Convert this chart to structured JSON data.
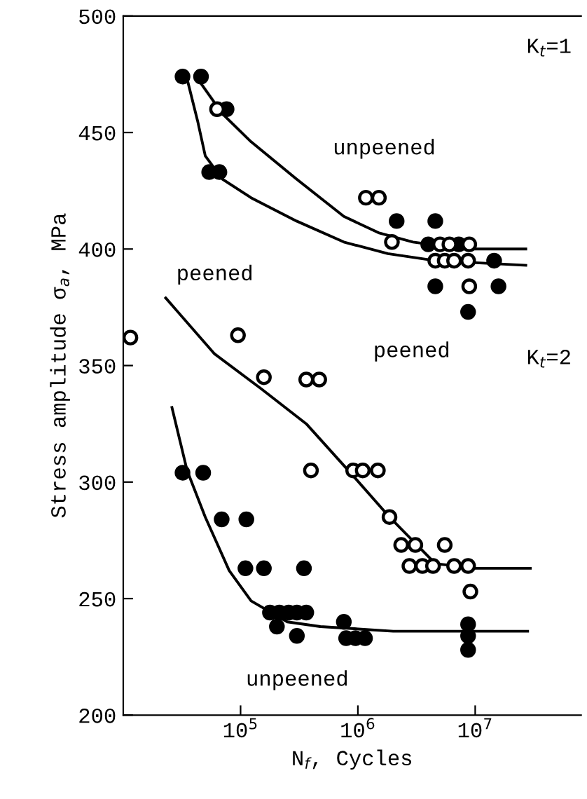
{
  "chart_data": {
    "type": "scatter",
    "xlabel": "N$_{f}$, Cycles",
    "ylabel": "Stress amplitude σ$_{a}$, MPa",
    "log": "x",
    "xlim": [
      10000,
      80000000
    ],
    "ylim": [
      200,
      500
    ],
    "xticks": [
      {
        "value": 100000,
        "label": "10$^{5}$"
      },
      {
        "value": 1000000,
        "label": "10$^{6}$"
      },
      {
        "value": 10000000,
        "label": "10$^{7}$"
      }
    ],
    "yticks": [
      200,
      250,
      300,
      350,
      400,
      450,
      500
    ],
    "grid": false,
    "legend": false,
    "series": [
      {
        "marker": "circle",
        "color": "#000000",
        "x": [
          32000,
          46000,
          76000,
          54000,
          66000,
          2140000,
          4570000,
          3980000,
          7240000,
          4570000,
          15800000,
          8700000,
          14500000
        ],
        "values": [
          474,
          474,
          460,
          433,
          433,
          412,
          412,
          402,
          402,
          384,
          384,
          373,
          395
        ]
      },
      {
        "marker": "circle",
        "color": "#ffffff",
        "x": [
          63000,
          1170000,
          1510000,
          1950000,
          5010000,
          6030000,
          8900000,
          4570000,
          5500000,
          6610000,
          8700000,
          8900000
        ],
        "values": [
          460,
          422,
          422,
          403,
          402,
          402,
          402,
          395,
          395,
          395,
          395,
          384
        ]
      },
      {
        "marker": "circle",
        "color": "#ffffff",
        "x": [
          11500,
          95000,
          158000,
          363000,
          468000,
          398000,
          912000,
          1100000,
          1480000,
          1860000,
          2340000,
          3090000,
          5500000,
          2750000,
          3550000,
          4370000,
          6610000,
          8700000,
          9100000
        ],
        "values": [
          362,
          363,
          345,
          344,
          344,
          305,
          305,
          305,
          305,
          285,
          273,
          273,
          273,
          264,
          264,
          264,
          264,
          264,
          253
        ]
      },
      {
        "marker": "circle",
        "color": "#000000",
        "x": [
          32000,
          48000,
          69000,
          112000,
          110000,
          158000,
          347000,
          178000,
          214000,
          257000,
          302000,
          363000,
          204000,
          302000,
          759000,
          794000,
          955000,
          1150000,
          8700000,
          8700000,
          8700000
        ],
        "values": [
          304,
          304,
          284,
          284,
          263,
          263,
          263,
          244,
          244,
          244,
          244,
          244,
          238,
          234,
          240,
          233,
          233,
          233,
          239,
          234,
          228
        ]
      },
      {
        "type": "line",
        "marker": "none",
        "color": "#000000",
        "x": [
          46000,
          70000,
          123000,
          300000,
          759000,
          1500000,
          2950000,
          8000000,
          27000000
        ],
        "values": [
          471,
          458,
          446,
          430,
          414,
          407,
          403,
          400,
          400
        ]
      },
      {
        "type": "line",
        "marker": "none",
        "color": "#000000",
        "x": [
          35000,
          43000,
          50000,
          70000,
          123000,
          300000,
          759000,
          1800000,
          4570000,
          27000000
        ],
        "values": [
          473,
          455,
          440,
          430,
          422,
          412,
          403,
          398,
          395,
          393
        ]
      },
      {
        "type": "line",
        "marker": "none",
        "color": "#000000",
        "x": [
          23000,
          60000,
          150000,
          363000,
          900000,
          1860000,
          4570000,
          10000000,
          29500000
        ],
        "values": [
          379,
          355,
          340,
          325,
          303,
          285,
          265,
          263,
          263
        ]
      },
      {
        "type": "line",
        "marker": "none",
        "color": "#000000",
        "x": [
          26000,
          35000,
          50000,
          80000,
          123000,
          250000,
          479000,
          2000000,
          28000000
        ],
        "values": [
          332,
          305,
          285,
          262,
          249,
          240,
          238,
          236,
          236
        ]
      }
    ],
    "annotations": [
      "K$_{t}$=1",
      "unpeened",
      "peened",
      "peened",
      "K$_{t}$=2",
      "unpeened"
    ]
  }
}
